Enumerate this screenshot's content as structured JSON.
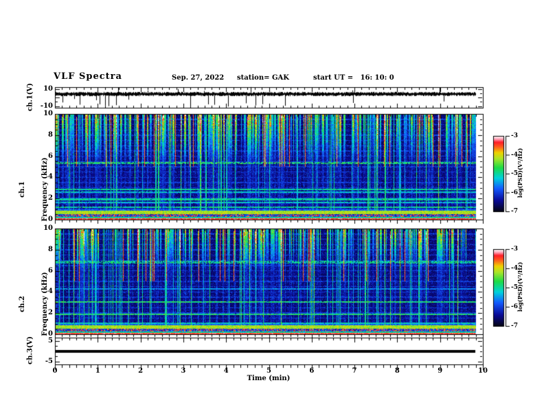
{
  "title": {
    "main": "VLF Spectra",
    "date": "Sep. 27, 2022",
    "station": "station= GAK",
    "start_ut": "start UT =   16: 10: 0"
  },
  "time_axis": {
    "label": "Time (min)",
    "range": [
      0,
      10
    ],
    "tick_labels": [
      "0",
      "1",
      "2",
      "3",
      "4",
      "5",
      "6",
      "7",
      "8",
      "9",
      "10"
    ],
    "minor_per_major": 6,
    "data_end_min": 9.85
  },
  "colorbar": {
    "label": "log(PSD)(V²/Hz)",
    "tick_labels": [
      "-3",
      "-4",
      "-5",
      "-6",
      "-7"
    ],
    "range": [
      -7,
      -3
    ],
    "gradient_top_to_bottom": [
      "white",
      "pink",
      "red",
      "yellow",
      "green",
      "cyan",
      "blue",
      "black"
    ]
  },
  "chart_data": [
    {
      "type": "line",
      "name": "ch.1 waveform",
      "ylabel": "ch.1(V)",
      "yrange": [
        -10,
        10
      ],
      "ytick_values": [
        10,
        -10
      ],
      "ytick_labels": [
        "10",
        "-10"
      ],
      "xrange": [
        0,
        10
      ],
      "baseline_V": 4,
      "noise_V": 1.5,
      "spike_count": 26,
      "description": "noisy trace near +4 V with impulsive spikes, mostly downward to -10 V",
      "seed": 7
    },
    {
      "type": "heatmap",
      "name": "ch.1 spectrogram",
      "ylabel_channel": "ch.1",
      "ylabel_axis": "Frequency (kHz)",
      "yrange": [
        0,
        10
      ],
      "ytick_values": [
        10,
        8,
        6,
        4,
        2,
        0
      ],
      "ytick_labels": [
        "10",
        "8",
        "6",
        "4",
        "2",
        "0"
      ],
      "xrange": [
        0,
        10
      ],
      "zlabel": "log(PSD)(V²/Hz)",
      "zrange": [
        -7,
        -3
      ],
      "seed": 11,
      "upper_cut_kHz": 5.2,
      "streak_p": 0.34,
      "hot_p": 0.05,
      "full_p": 0.1,
      "dashed_band": [
        5.35,
        0.55
      ],
      "tone_lines": [
        [
          2.85,
          0.5
        ],
        [
          2.6,
          0.45
        ],
        [
          1.9,
          0.5
        ],
        [
          1.6,
          0.45
        ],
        [
          1.15,
          0.5
        ]
      ],
      "harmonic_spacing_kHz": 0.5,
      "bottom_band_kHz": 0.95,
      "description": "dense vertical sferic streaks above ~5 kHz (green/cyan/yellow/red), dark blue background, dashed cyan band ~5.4 kHz, tone lines 1-3 kHz, bright yellow/red band below 1 kHz"
    },
    {
      "type": "heatmap",
      "name": "ch.2 spectrogram",
      "ylabel_channel": "ch.2",
      "ylabel_axis": "Frequency (kHz)",
      "yrange": [
        0,
        10
      ],
      "ytick_values": [
        10,
        8,
        6,
        4,
        2,
        0
      ],
      "ytick_labels": [
        "10",
        "8",
        "6",
        "4",
        "2",
        "0"
      ],
      "xrange": [
        0,
        10
      ],
      "zlabel": "log(PSD)(V²/Hz)",
      "zrange": [
        -7,
        -3
      ],
      "seed": 47,
      "upper_cut_kHz": 6.0,
      "streak_p": 0.3,
      "hot_p": 0.035,
      "full_p": 0.12,
      "dashed_band": [
        6.85,
        0.5
      ],
      "tone_lines": [
        [
          4.3,
          0.35
        ],
        [
          3.05,
          0.55
        ],
        [
          1.85,
          0.55
        ],
        [
          1.0,
          0.45
        ]
      ],
      "harmonic_spacing_kHz": 0.5,
      "bottom_band_kHz": 0.95,
      "description": "similar sferic streak spectrogram, strong horizontal tone lines near 3.0 and 1.85 kHz, bright band below 1 kHz"
    },
    {
      "type": "line",
      "name": "ch.3",
      "ylabel": "ch.3(V)",
      "yrange": [
        -5,
        5
      ],
      "ytick_values": [
        5,
        -5
      ],
      "ytick_labels": [
        "5",
        "-5"
      ],
      "xrange": [
        0,
        10
      ],
      "value_V": 0,
      "description": "thick flat line at ~0 V ending near 9.85 min"
    }
  ]
}
